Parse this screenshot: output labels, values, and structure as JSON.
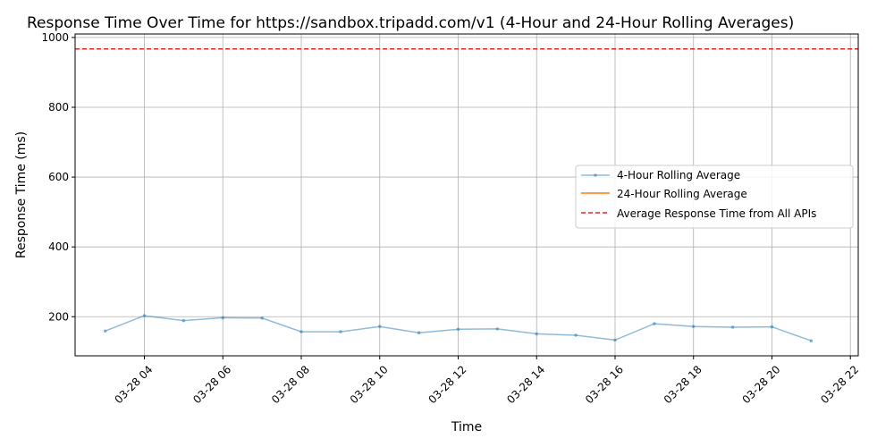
{
  "chart_data": {
    "type": "line",
    "title": "Response Time Over Time for https://sandbox.tripadd.com/v1 (4-Hour and 24-Hour Rolling Averages)",
    "xlabel": "Time",
    "ylabel": "Response Time (ms)",
    "ylim": [
      88,
      1010
    ],
    "xlim": [
      "2024-03-28 02:14",
      "2024-03-28 22:12"
    ],
    "y_ticks": [
      200,
      400,
      600,
      800,
      1000
    ],
    "x_ticks": [
      {
        "t": "2024-03-28 04:00",
        "label": "03-28 04"
      },
      {
        "t": "2024-03-28 06:00",
        "label": "03-28 06"
      },
      {
        "t": "2024-03-28 08:00",
        "label": "03-28 08"
      },
      {
        "t": "2024-03-28 10:00",
        "label": "03-28 10"
      },
      {
        "t": "2024-03-28 12:00",
        "label": "03-28 12"
      },
      {
        "t": "2024-03-28 14:00",
        "label": "03-28 14"
      },
      {
        "t": "2024-03-28 16:00",
        "label": "03-28 16"
      },
      {
        "t": "2024-03-28 18:00",
        "label": "03-28 18"
      },
      {
        "t": "2024-03-28 20:00",
        "label": "03-28 20"
      },
      {
        "t": "2024-03-28 22:00",
        "label": "03-28 22"
      }
    ],
    "grid": true,
    "legend_position": "center-right",
    "series": [
      {
        "name": "4-Hour Rolling Average",
        "color": "#1f77b4",
        "x": [
          "2024-03-28 03:00",
          "2024-03-28 04:00",
          "2024-03-28 05:00",
          "2024-03-28 06:00",
          "2024-03-28 07:00",
          "2024-03-28 08:00",
          "2024-03-28 09:00",
          "2024-03-28 10:00",
          "2024-03-28 11:00",
          "2024-03-28 12:00",
          "2024-03-28 13:00",
          "2024-03-28 14:00",
          "2024-03-28 15:00",
          "2024-03-28 16:00",
          "2024-03-28 17:00",
          "2024-03-28 18:00",
          "2024-03-28 19:00",
          "2024-03-28 20:00",
          "2024-03-28 21:00"
        ],
        "values": [
          159,
          203,
          189,
          197,
          196,
          157,
          157,
          172,
          154,
          164,
          165,
          151,
          147,
          133,
          180,
          172,
          170,
          171,
          131
        ]
      },
      {
        "name": "24-Hour Rolling Average",
        "color": "#ff7f0e",
        "x": [],
        "values": []
      }
    ],
    "reference_line": {
      "name": "Average Response Time from All APIs",
      "value": 967,
      "color": "#d62728"
    }
  }
}
